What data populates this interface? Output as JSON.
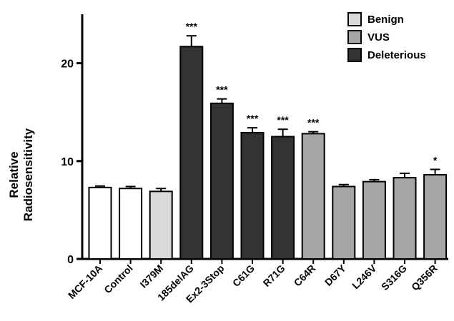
{
  "chart_data": {
    "type": "bar",
    "ylabel": "Relative\nRadiosensitivity",
    "xlabel": "",
    "ylim": [
      0,
      25
    ],
    "yticks": [
      0,
      10,
      20
    ],
    "categories": [
      "MCF-10A",
      "Control",
      "I379M",
      "185delAG",
      "Ex2-3Stop",
      "C61G",
      "R71G",
      "C64R",
      "D67Y",
      "L246V",
      "S316G",
      "Q356R"
    ],
    "values": [
      7.3,
      7.2,
      6.9,
      21.7,
      15.9,
      12.9,
      12.5,
      12.8,
      7.4,
      7.9,
      8.3,
      8.6
    ],
    "errors": [
      0.15,
      0.2,
      0.3,
      1.1,
      0.45,
      0.5,
      0.75,
      0.2,
      0.2,
      0.2,
      0.45,
      0.55
    ],
    "groups": [
      "none",
      "none",
      "Benign",
      "Deleterious",
      "Deleterious",
      "Deleterious",
      "Deleterious",
      "VUS",
      "VUS",
      "VUS",
      "VUS",
      "VUS"
    ],
    "significance": [
      "",
      "",
      "",
      "***",
      "***",
      "***",
      "***",
      "***",
      "",
      "",
      "",
      "*"
    ],
    "legend": {
      "position": "top-right",
      "entries": [
        {
          "label": "Benign",
          "color": "#d9d9d9"
        },
        {
          "label": "VUS",
          "color": "#a6a6a6"
        },
        {
          "label": "Deleterious",
          "color": "#333333"
        }
      ]
    },
    "colors": {
      "none": "#ffffff",
      "Benign": "#d9d9d9",
      "VUS": "#a6a6a6",
      "Deleterious": "#333333"
    }
  }
}
